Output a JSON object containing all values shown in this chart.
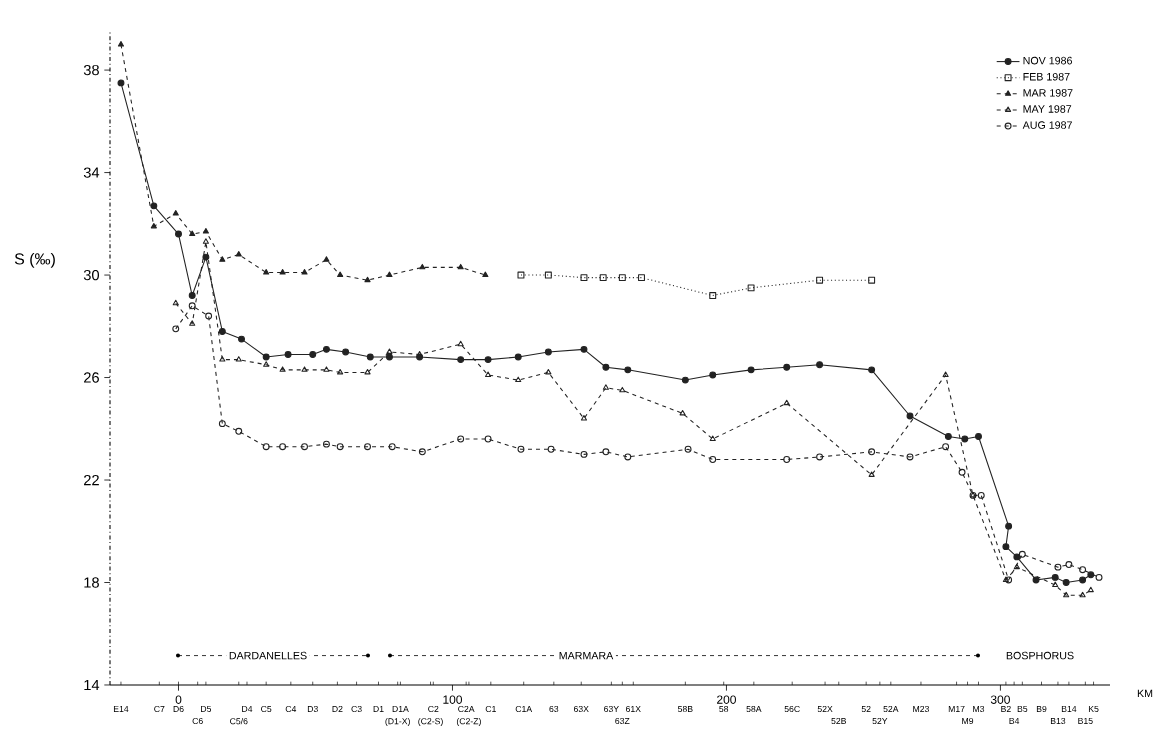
{
  "chart_data": {
    "type": "line",
    "ylabel": "S (‰)",
    "xlabel": "KM",
    "xlim": [
      -25,
      340
    ],
    "ylim": [
      14,
      39.5
    ],
    "yticks": [
      14,
      18,
      22,
      26,
      30,
      34,
      38
    ],
    "xticks": [
      0,
      100,
      200,
      300
    ],
    "legend": "top right",
    "annotations": [
      "DARDANELLES",
      "MARMARA",
      "BOSPHORUS",
      "E14",
      "C7",
      "D6",
      "D5",
      "D4",
      "C5",
      "C4",
      "D3",
      "D2",
      "C3",
      "D1",
      "D1A",
      "C2",
      "C2A",
      "C1",
      "C1A",
      "63",
      "63X",
      "63Y",
      "61X",
      "58B",
      "58",
      "58A",
      "56C",
      "52X",
      "52",
      "52A",
      "M23",
      "M17",
      "M3",
      "B2",
      "B5",
      "B9",
      "B14",
      "K5",
      "C6",
      "C5/6",
      "(D1-X)",
      "(C2-S)",
      "(C2-Z)",
      "63Z",
      "52B",
      "52Y",
      "M9",
      "B4",
      "B13",
      "B15"
    ],
    "series": [
      {
        "name": "NOV 1986",
        "color": "#222222",
        "marker": "circle",
        "line_style": "solid",
        "x": [
          -21,
          -9,
          0,
          5,
          10,
          16,
          23,
          32,
          40,
          49,
          54,
          61,
          70,
          77,
          88,
          103,
          113,
          124,
          135,
          148,
          156,
          164,
          185,
          195,
          209,
          222,
          234,
          253,
          267,
          281,
          287,
          292,
          303,
          302,
          306,
          313,
          320,
          324,
          330,
          333
        ],
        "values": [
          37.5,
          32.7,
          31.6,
          29.2,
          30.7,
          27.8,
          27.5,
          26.8,
          26.9,
          26.9,
          27.1,
          27.0,
          26.8,
          26.8,
          26.8,
          26.7,
          26.7,
          26.8,
          27.0,
          27.1,
          26.4,
          26.3,
          25.9,
          26.1,
          26.3,
          26.4,
          26.5,
          26.3,
          24.5,
          23.7,
          23.6,
          23.7,
          20.2,
          19.4,
          19.0,
          18.1,
          18.2,
          18.0,
          18.1,
          18.3
        ]
      },
      {
        "name": "FEB 1987",
        "color": "#222222",
        "marker": "square",
        "line_style": "dotted",
        "x": [
          125,
          135,
          148,
          155,
          162,
          169,
          195,
          209,
          234,
          253
        ],
        "values": [
          30.0,
          30.0,
          29.9,
          29.9,
          29.9,
          29.9,
          29.2,
          29.5,
          29.8,
          29.8
        ]
      },
      {
        "name": "MAR 1987",
        "color": "#222222",
        "marker": "triangle",
        "line_style": "dashed",
        "x": [
          -21,
          -9,
          -1,
          5,
          10,
          16,
          22,
          32,
          38,
          46,
          54,
          59,
          69,
          77,
          89,
          103,
          112
        ],
        "values": [
          39.0,
          31.9,
          32.4,
          31.6,
          31.7,
          30.6,
          30.8,
          30.1,
          30.1,
          30.1,
          30.6,
          30.0,
          29.8,
          30.0,
          30.3,
          30.3,
          30.0
        ]
      },
      {
        "name": "MAY 1987",
        "color": "#222222",
        "marker": "triangle",
        "line_style": "dashed",
        "x": [
          -1,
          5,
          10,
          16,
          22,
          32,
          38,
          46,
          54,
          59,
          69,
          77,
          88,
          103,
          113,
          124,
          135,
          148,
          156,
          162,
          184,
          195,
          222,
          253,
          280,
          290,
          302,
          306,
          320,
          324,
          330,
          333
        ],
        "values": [
          28.9,
          28.1,
          31.3,
          26.7,
          26.7,
          26.5,
          26.3,
          26.3,
          26.3,
          26.2,
          26.2,
          27.0,
          26.9,
          27.3,
          26.1,
          25.9,
          26.2,
          24.4,
          25.6,
          25.5,
          24.6,
          23.6,
          25.0,
          22.2,
          26.1,
          21.4,
          18.1,
          18.6,
          17.9,
          17.5,
          17.5,
          17.7
        ]
      },
      {
        "name": "AUG 1987",
        "color": "#222222",
        "marker": "circle",
        "line_style": "dashed",
        "x": [
          -1,
          5,
          11,
          16,
          22,
          32,
          38,
          46,
          54,
          59,
          69,
          78,
          89,
          103,
          113,
          125,
          136,
          148,
          156,
          164,
          186,
          195,
          222,
          234,
          253,
          267,
          280,
          286,
          290,
          293,
          303,
          308,
          321,
          325,
          330,
          336
        ],
        "values": [
          27.9,
          28.8,
          28.4,
          24.2,
          23.9,
          23.3,
          23.3,
          23.3,
          23.4,
          23.3,
          23.3,
          23.3,
          23.1,
          23.6,
          23.6,
          23.2,
          23.2,
          23.0,
          23.1,
          22.9,
          23.2,
          22.8,
          22.8,
          22.9,
          23.1,
          22.9,
          23.3,
          22.3,
          21.4,
          21.4,
          18.1,
          19.1,
          18.6,
          18.7,
          18.5,
          18.2
        ]
      }
    ]
  }
}
